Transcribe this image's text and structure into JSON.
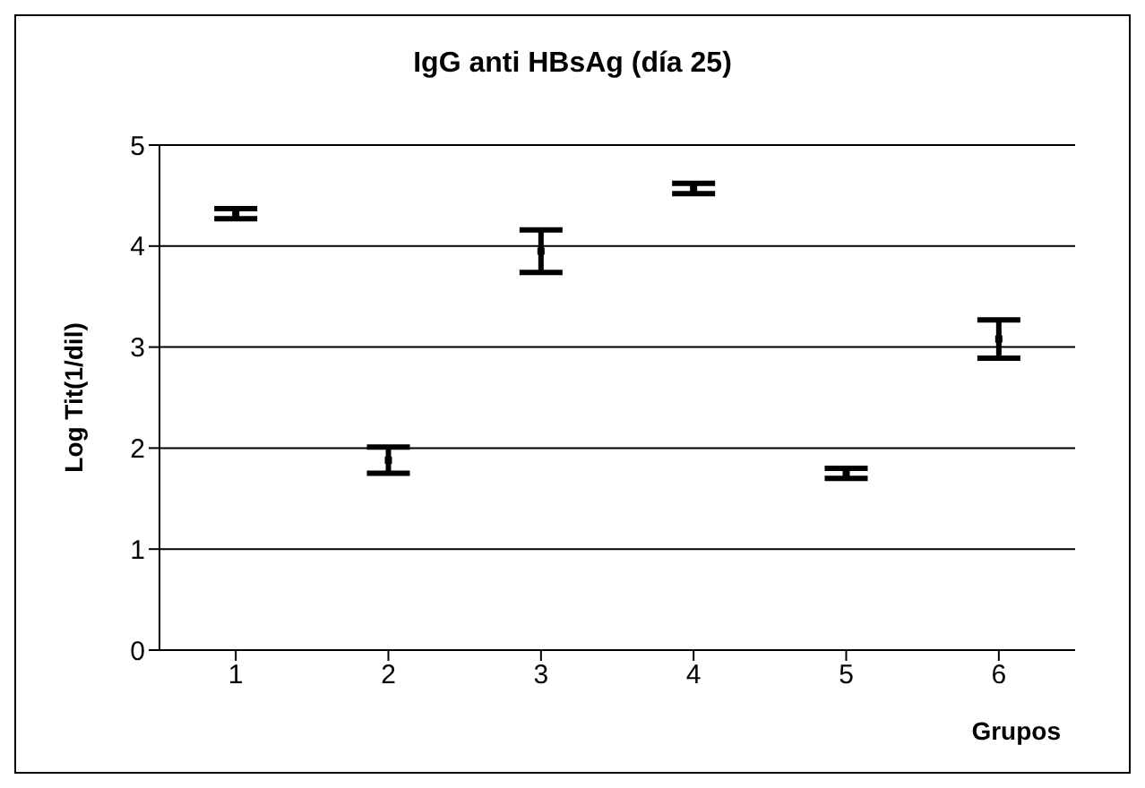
{
  "chart_data": {
    "type": "scatter",
    "title": "IgG anti HBsAg (día 25)",
    "xlabel": "Grupos",
    "ylabel": "Log Tit(1/dil)",
    "categories": [
      "1",
      "2",
      "3",
      "4",
      "5",
      "6"
    ],
    "series": [
      {
        "color": "#000000",
        "values": [
          4.32,
          1.88,
          3.95,
          4.57,
          1.75,
          3.08
        ],
        "errors": [
          0.05,
          0.13,
          0.21,
          0.05,
          0.05,
          0.19
        ]
      }
    ],
    "ylim": [
      0,
      5
    ],
    "yticks": [
      0,
      1,
      2,
      3,
      4,
      5
    ],
    "grid": "y",
    "marker": "square"
  }
}
